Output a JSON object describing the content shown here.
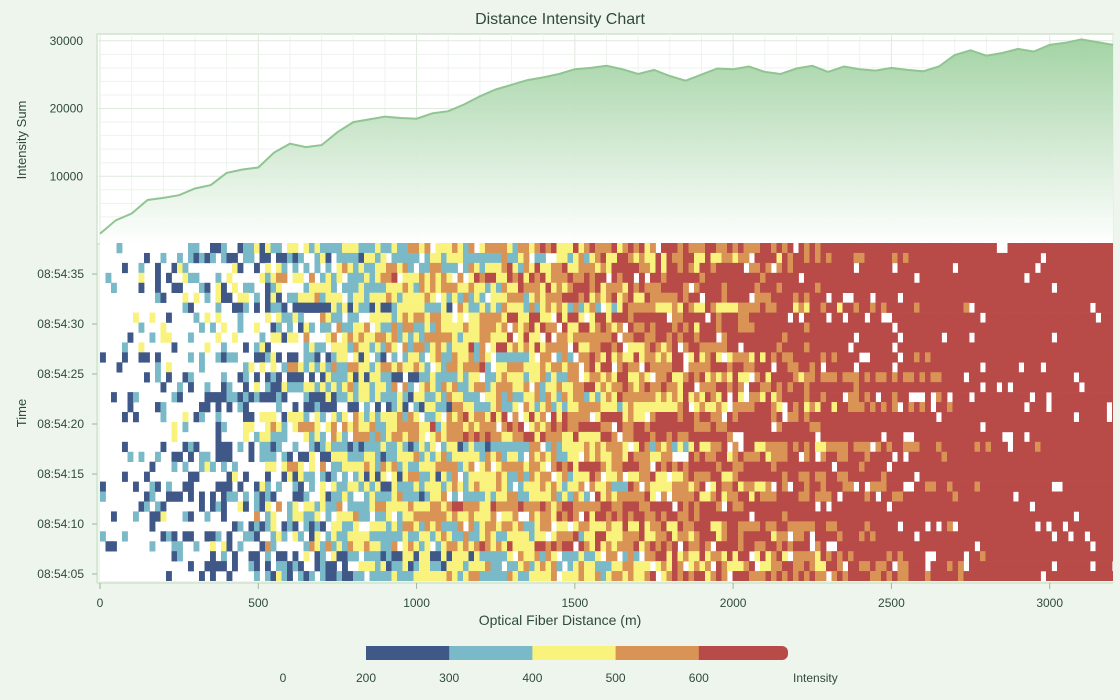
{
  "chart_data": {
    "title": "Distance Intensity Chart",
    "top_panel": {
      "type": "area",
      "ylabel": "Intensity Sum",
      "y_ticks": [
        10000,
        20000,
        30000
      ],
      "ylim": [
        0,
        31000
      ],
      "color": "#7ec385",
      "x": [
        0,
        50,
        100,
        150,
        200,
        250,
        300,
        350,
        400,
        450,
        500,
        550,
        600,
        650,
        700,
        750,
        800,
        850,
        900,
        950,
        1000,
        1050,
        1100,
        1150,
        1200,
        1250,
        1300,
        1350,
        1400,
        1450,
        1500,
        1550,
        1600,
        1650,
        1700,
        1750,
        1800,
        1850,
        1900,
        1950,
        2000,
        2050,
        2100,
        2150,
        2200,
        2250,
        2300,
        2350,
        2400,
        2450,
        2500,
        2550,
        2600,
        2650,
        2700,
        2750,
        2800,
        2850,
        2900,
        2950,
        3000,
        3050,
        3100,
        3150,
        3200
      ],
      "values": [
        1500,
        3500,
        4500,
        6500,
        6800,
        7200,
        8200,
        8700,
        10500,
        11000,
        11300,
        13500,
        14800,
        14300,
        14600,
        16500,
        18000,
        18400,
        18800,
        18600,
        18500,
        19300,
        19600,
        20600,
        21800,
        22800,
        23500,
        24200,
        24600,
        25100,
        25800,
        26000,
        26300,
        25800,
        25100,
        25700,
        24800,
        24100,
        25000,
        25900,
        25800,
        26200,
        25400,
        25100,
        25900,
        26300,
        25400,
        26200,
        25800,
        25600,
        26000,
        25700,
        25500,
        26200,
        27900,
        28600,
        27800,
        28200,
        28800,
        28400,
        29400,
        29700,
        30200,
        29800,
        29400
      ]
    },
    "heatmap": {
      "type": "heatmap",
      "xlabel": "Optical Fiber Distance (m)",
      "ylabel": "Time",
      "x_ticks": [
        0,
        500,
        1000,
        1500,
        2000,
        2500,
        3000
      ],
      "xlim": [
        0,
        3200
      ],
      "y_ticks": [
        "08:54:35",
        "08:54:30",
        "08:54:25",
        "08:54:20",
        "08:54:15",
        "08:54:10",
        "08:54:05"
      ],
      "color_bins": [
        {
          "min": 200,
          "max": 300,
          "color": "#3f5888"
        },
        {
          "min": 300,
          "max": 400,
          "color": "#7ab9c8"
        },
        {
          "min": 400,
          "max": 500,
          "color": "#f9f37e"
        },
        {
          "min": 500,
          "max": 600,
          "color": "#d99355"
        },
        {
          "min": 600,
          "max": 700,
          "color": "#b84a48"
        }
      ],
      "gap_color": "#ffffff"
    },
    "legend": {
      "label": "Intensity",
      "tick_labels": [
        "0",
        "200",
        "300",
        "400",
        "500",
        "600"
      ],
      "position": "bottom-center"
    }
  }
}
